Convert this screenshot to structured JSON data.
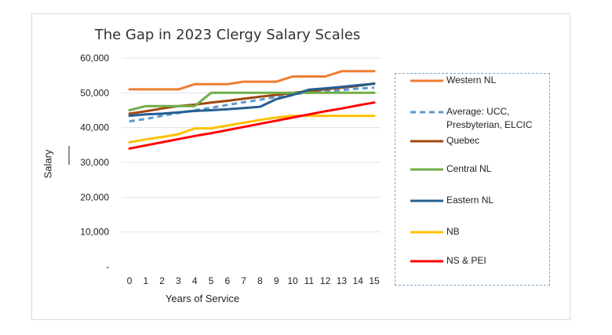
{
  "chart_data": {
    "type": "line",
    "title": "The Gap in 2023 Clergy Salary Scales",
    "xlabel": "Years of Service",
    "ylabel": "Salary",
    "x": [
      0,
      1,
      2,
      3,
      4,
      5,
      6,
      7,
      8,
      9,
      10,
      11,
      12,
      13,
      14,
      15
    ],
    "ylim": [
      0,
      60000
    ],
    "yticks": [
      0,
      10000,
      20000,
      30000,
      40000,
      50000,
      60000
    ],
    "ytick_labels": [
      "-",
      "10,000",
      "20,000",
      "30,000",
      "40,000",
      "50,000",
      "60,000"
    ],
    "xtick_labels": [
      "0",
      "1",
      "2",
      "3",
      "4",
      "5",
      "6",
      "7",
      "8",
      "9",
      "10",
      "11",
      "12",
      "13",
      "14",
      "15"
    ],
    "grid": true,
    "legend_position": "right",
    "series": [
      {
        "name": "Western NL",
        "color": "#ED7D31",
        "dash": "solid",
        "values": [
          51000,
          51000,
          51000,
          51000,
          52500,
          52500,
          52500,
          53200,
          53200,
          53200,
          54700,
          54700,
          54700,
          56200,
          56200,
          56200
        ]
      },
      {
        "name": "Average: UCC, Presbyterian, ELCIC",
        "color": "#5B9BD5",
        "dash": "dashed",
        "values": [
          41800,
          42500,
          43400,
          44200,
          45000,
          45700,
          46500,
          47300,
          48000,
          48800,
          49600,
          50000,
          50400,
          50800,
          51200,
          51500
        ]
      },
      {
        "name": "Quebec",
        "color": "#9E480E",
        "dash": "solid",
        "values": [
          44000,
          44700,
          45500,
          46200,
          46600,
          47200,
          47700,
          48300,
          48900,
          49400,
          50000,
          50500,
          51000,
          51500,
          52000,
          52700
        ]
      },
      {
        "name": "Central NL",
        "color": "#70AD47",
        "dash": "solid",
        "values": [
          45000,
          46200,
          46200,
          46200,
          46200,
          50000,
          50000,
          50000,
          50000,
          50000,
          50000,
          50000,
          50000,
          50000,
          50000,
          50000
        ]
      },
      {
        "name": "Eastern NL",
        "color": "#255E91",
        "dash": "solid",
        "values": [
          43400,
          43800,
          44000,
          44400,
          44800,
          45000,
          45300,
          45600,
          46000,
          48200,
          49400,
          50900,
          51300,
          51700,
          52200,
          52600
        ]
      },
      {
        "name": "NB",
        "color": "#FFC000",
        "dash": "solid",
        "values": [
          35800,
          36600,
          37300,
          38100,
          39800,
          39800,
          40600,
          41400,
          42200,
          42900,
          43400,
          43400,
          43400,
          43400,
          43400,
          43400
        ]
      },
      {
        "name": "NS & PEI",
        "color": "#FF0000",
        "dash": "solid",
        "values": [
          34000,
          34900,
          35800,
          36700,
          37600,
          38400,
          39300,
          40200,
          41100,
          42000,
          42900,
          43800,
          44700,
          45500,
          46400,
          47200
        ]
      }
    ]
  }
}
